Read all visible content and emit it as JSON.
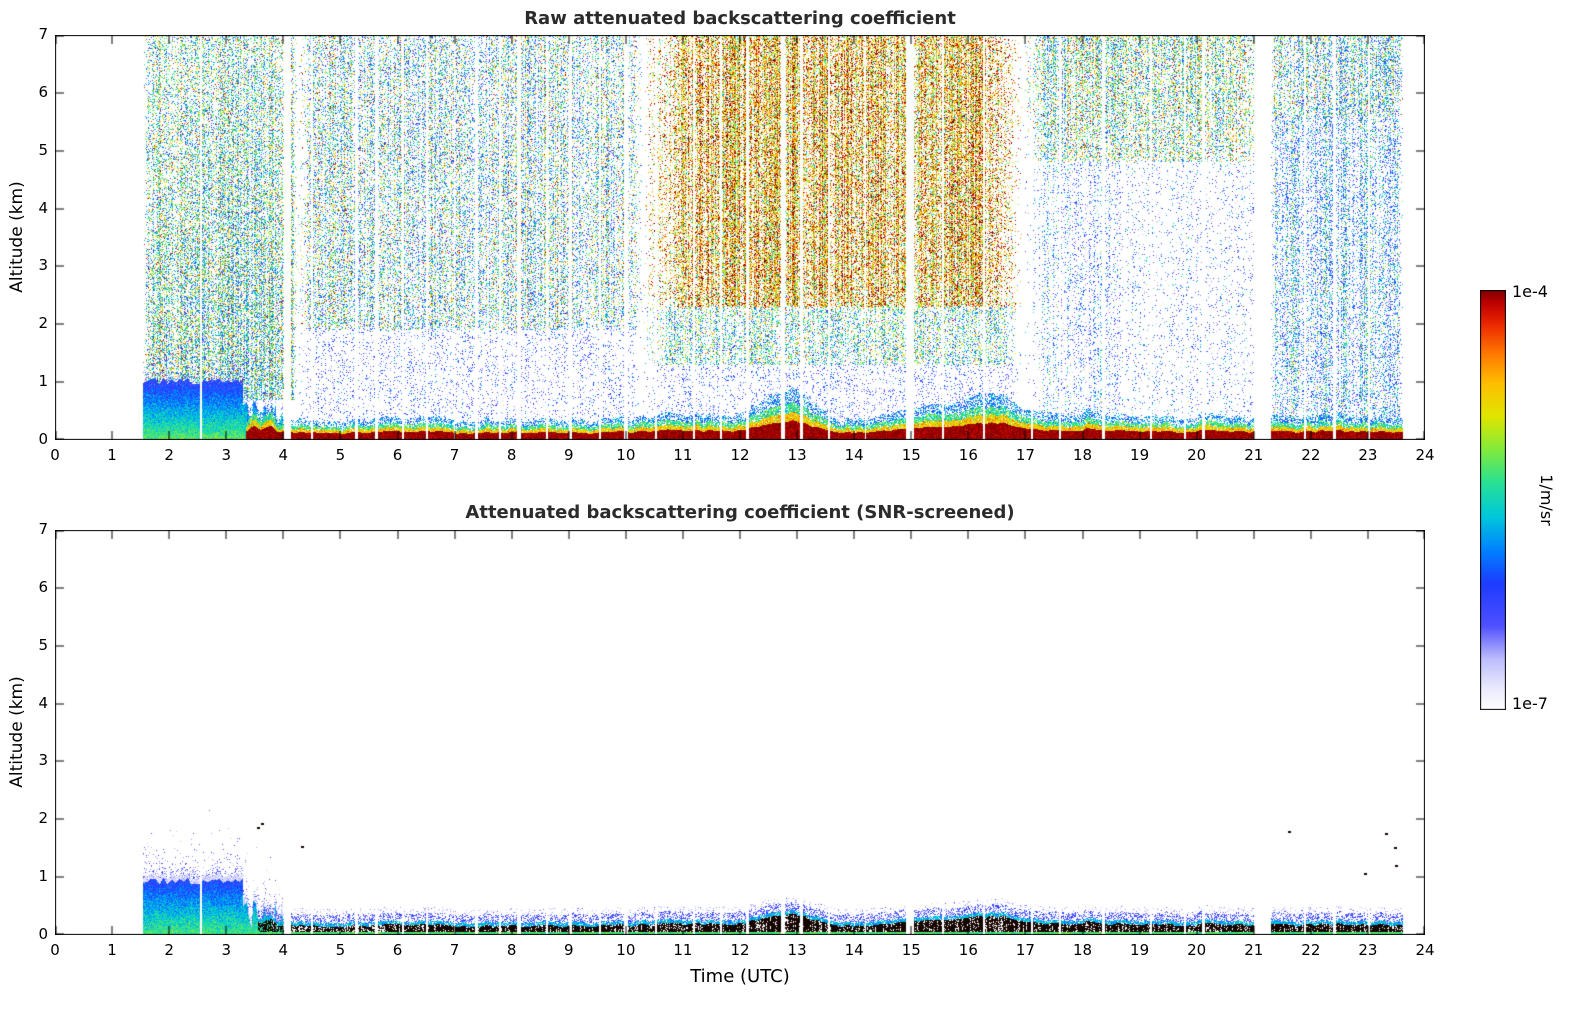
{
  "chart_data": [
    {
      "type": "heatmap",
      "title": "Raw attenuated backscattering coefficient",
      "xlabel": "",
      "ylabel": "Altitude (km)",
      "xlim": [
        0,
        24
      ],
      "ylim": [
        0,
        7
      ],
      "xticks": [
        0,
        1,
        2,
        3,
        4,
        5,
        6,
        7,
        8,
        9,
        10,
        11,
        12,
        13,
        14,
        15,
        16,
        17,
        18,
        19,
        20,
        21,
        22,
        23,
        24
      ],
      "yticks": [
        0,
        1,
        2,
        3,
        4,
        5,
        6,
        7
      ],
      "time_coverage": [
        1.55,
        23.62
      ],
      "value_scale": {
        "type": "log",
        "min": 1e-07,
        "max": 0.0001,
        "units": "1/m/sr"
      },
      "noise_regions": [
        {
          "name": "early-aloft",
          "t": [
            1.55,
            4.25
          ],
          "z": [
            0.7,
            7.0
          ],
          "mean": -5.45,
          "sd": 0.6,
          "density": 0.5,
          "colmod": 0.3,
          "zfade": 0.55,
          "soft": 0.1
        },
        {
          "name": "morning-aloft",
          "t": [
            4.25,
            10.3
          ],
          "z": [
            1.9,
            7.0
          ],
          "mean": -5.75,
          "sd": 0.7,
          "density": 0.34,
          "colmod": 0.6,
          "zfade": 0.9,
          "soft": 0.3
        },
        {
          "name": "morning-low",
          "t": [
            4.25,
            10.3
          ],
          "z": [
            0.3,
            1.9
          ],
          "mean": -6.35,
          "sd": 0.3,
          "density": 0.11,
          "colmod": 0.3,
          "soft": 0.2
        },
        {
          "name": "plume-aloft",
          "t": [
            10.3,
            16.95
          ],
          "z": [
            2.3,
            7.0
          ],
          "mean": -4.62,
          "sd": 0.5,
          "density": 0.52,
          "colmod": 0.25,
          "soft": 0.8
        },
        {
          "name": "plume-mid",
          "t": [
            10.3,
            16.95
          ],
          "z": [
            1.3,
            2.3
          ],
          "mean": -5.5,
          "sd": 0.55,
          "density": 0.3,
          "colmod": 0.25,
          "soft": 0.5
        },
        {
          "name": "plume-low",
          "t": [
            10.3,
            16.95
          ],
          "z": [
            0.3,
            1.3
          ],
          "mean": -6.35,
          "sd": 0.3,
          "density": 0.12,
          "colmod": 0.25,
          "soft": 0.3
        },
        {
          "name": "evening-clear",
          "t": [
            16.95,
            21.3
          ],
          "z": [
            0.3,
            4.8
          ],
          "mean": -6.3,
          "sd": 0.35,
          "density": 0.07,
          "colmod": 0.5,
          "soft": 0.3
        },
        {
          "name": "evening-streaks",
          "t": [
            17.25,
            18.75
          ],
          "z": [
            0.3,
            4.8
          ],
          "mean": -6.25,
          "sd": 0.35,
          "density": 0.17,
          "colmod": 0.7,
          "soft": 0.15
        },
        {
          "name": "evening-high",
          "t": [
            16.95,
            21.3
          ],
          "z": [
            4.8,
            7.0
          ],
          "mean": -5.35,
          "sd": 0.6,
          "density": 0.3,
          "colmod": 0.4,
          "zfade": 1.3,
          "soft": 0.5
        },
        {
          "name": "night-return",
          "t": [
            21.3,
            23.62
          ],
          "z": [
            0.3,
            7.0
          ],
          "mean": -6.05,
          "sd": 0.5,
          "density": 0.33,
          "colmod": 0.55,
          "soft": 0.1
        },
        {
          "name": "night-high",
          "t": [
            21.3,
            23.62
          ],
          "z": [
            5.6,
            7.0
          ],
          "mean": -5.7,
          "sd": 0.65,
          "density": 0.35,
          "colmod": 0.5,
          "soft": 0.1
        }
      ],
      "boundary_layer": {
        "t": [
          1.55,
          4.0
        ],
        "height": 1.02,
        "collapse_start": 3.3,
        "mean_bottom": -5.25,
        "mean_top": -6.2,
        "sd": 0.15,
        "top_speckle_density": 0.3,
        "top_speckle_mean": -6.55
      },
      "surface_layer": {
        "t": [
          3.35,
          23.62
        ],
        "base_height": 0.13,
        "jitter": 0.025,
        "bumps": [
          [
            3.5,
            0.1,
            0.1
          ],
          [
            3.78,
            0.08,
            0.09
          ],
          [
            11.0,
            0.5,
            0.04
          ],
          [
            12.55,
            0.4,
            0.09
          ],
          [
            13.0,
            0.3,
            0.13
          ],
          [
            15.55,
            0.7,
            0.09
          ],
          [
            16.55,
            0.45,
            0.12
          ],
          [
            18.1,
            0.5,
            0.05
          ],
          [
            20.3,
            0.4,
            0.04
          ],
          [
            22.5,
            0.6,
            0.03
          ]
        ],
        "layers": [
          {
            "zf": [
              0,
              1.0
            ],
            "mean": -4.03,
            "sd": 0.07,
            "density": 1.0
          },
          {
            "zf": [
              1.0,
              1.45
            ],
            "mean": -4.75,
            "sd": 0.2,
            "density": 0.95
          },
          {
            "zf": [
              1.45,
              1.95
            ],
            "mean": -5.35,
            "sd": 0.2,
            "density": 0.8
          },
          {
            "zf": [
              1.95,
              2.7
            ],
            "mean": -5.85,
            "sd": 0.25,
            "density": 0.45
          }
        ]
      },
      "gaps": [
        [
          2.56,
          0.04
        ],
        [
          4.08,
          0.12
        ],
        [
          4.5,
          0.04
        ],
        [
          5.28,
          0.06
        ],
        [
          5.63,
          0.05
        ],
        [
          6.1,
          0.04
        ],
        [
          6.52,
          0.03
        ],
        [
          7.0,
          0.03
        ],
        [
          7.38,
          0.06
        ],
        [
          7.8,
          0.03
        ],
        [
          8.13,
          0.07
        ],
        [
          8.62,
          0.03
        ],
        [
          9.03,
          0.05
        ],
        [
          9.55,
          0.03
        ],
        [
          10.0,
          0.08
        ],
        [
          10.53,
          0.04
        ],
        [
          11.2,
          0.04
        ],
        [
          11.67,
          0.03
        ],
        [
          12.13,
          0.06
        ],
        [
          12.76,
          0.07
        ],
        [
          13.08,
          0.05
        ],
        [
          13.56,
          0.03
        ],
        [
          14.2,
          0.03
        ],
        [
          14.98,
          0.14
        ],
        [
          15.56,
          0.04
        ],
        [
          16.27,
          0.04
        ],
        [
          17.12,
          0.03
        ],
        [
          17.6,
          0.03
        ],
        [
          18.37,
          0.05
        ],
        [
          19.2,
          0.03
        ],
        [
          19.8,
          0.03
        ],
        [
          20.12,
          0.04
        ],
        [
          21.15,
          0.3
        ],
        [
          21.9,
          0.03
        ],
        [
          22.42,
          0.05
        ],
        [
          23.02,
          0.04
        ]
      ]
    },
    {
      "type": "heatmap",
      "title": "Attenuated backscattering coefficient (SNR-screened)",
      "xlabel": "Time (UTC)",
      "ylabel": "Altitude (km)",
      "xlim": [
        0,
        24
      ],
      "ylim": [
        0,
        7
      ],
      "xticks": [
        0,
        1,
        2,
        3,
        4,
        5,
        6,
        7,
        8,
        9,
        10,
        11,
        12,
        13,
        14,
        15,
        16,
        17,
        18,
        19,
        20,
        21,
        22,
        23,
        24
      ],
      "yticks": [
        0,
        1,
        2,
        3,
        4,
        5,
        6,
        7
      ],
      "time_coverage": [
        1.55,
        23.62
      ],
      "value_scale": {
        "type": "log",
        "min": 1e-07,
        "max": 0.0001,
        "units": "1/m/sr"
      },
      "boundary_layer": {
        "t": [
          1.55,
          4.0
        ],
        "height": 1.02,
        "collapse_start": 3.3,
        "mean_bottom": -5.3,
        "mean_top": -6.2,
        "sd": 0.15,
        "top_speckle_density": 0.35,
        "top_speckle_mean": -6.5,
        "pale_top": -6.75,
        "high_speckle": {
          "t": [
            2.0,
            3.35
          ],
          "zmax": 1.85,
          "density": 0.05
        }
      },
      "surface_layer": {
        "t": [
          3.55,
          23.62
        ],
        "base_height": 0.16,
        "jitter": 0.03,
        "bumps": [
          [
            3.5,
            0.1,
            0.1
          ],
          [
            3.78,
            0.08,
            0.09
          ],
          [
            11.0,
            0.5,
            0.04
          ],
          [
            12.55,
            0.4,
            0.09
          ],
          [
            13.0,
            0.3,
            0.13
          ],
          [
            15.55,
            0.7,
            0.09
          ],
          [
            16.55,
            0.45,
            0.12
          ],
          [
            18.1,
            0.5,
            0.05
          ],
          [
            20.3,
            0.4,
            0.04
          ],
          [
            22.5,
            0.6,
            0.03
          ]
        ],
        "green_top": 0.06,
        "band_color": [
          22,
          4,
          0
        ],
        "band_density_early": 0.72,
        "band_density": 0.96,
        "fringe": [
          {
            "dz": 0.06,
            "mean": -5.7,
            "density": 0.85
          },
          {
            "dz": 0.2,
            "mean": -6.35,
            "density": 0.4
          },
          {
            "dz": 0.3,
            "mean": -6.7,
            "density": 0.15
          }
        ]
      },
      "specks": [
        [
          23.32,
          1.75,
          -4.7
        ],
        [
          23.5,
          1.2,
          -5.3
        ],
        [
          23.48,
          1.5,
          -5.5
        ],
        [
          22.95,
          1.05,
          -5.6
        ],
        [
          21.62,
          1.78,
          -4.9
        ],
        [
          4.32,
          1.52,
          -5.9
        ],
        [
          3.55,
          1.85,
          -4.0
        ],
        [
          3.62,
          1.92,
          -4.0
        ]
      ]
    }
  ],
  "colorbar": {
    "label": "1/m/sr",
    "top_label": "1e-4",
    "bottom_label": "1e-7",
    "colormap": [
      [
        0.0,
        255,
        255,
        255
      ],
      [
        0.05,
        235,
        235,
        252
      ],
      [
        0.12,
        190,
        190,
        252
      ],
      [
        0.2,
        80,
        80,
        255
      ],
      [
        0.3,
        30,
        60,
        255
      ],
      [
        0.38,
        0,
        130,
        255
      ],
      [
        0.46,
        0,
        200,
        220
      ],
      [
        0.54,
        40,
        225,
        150
      ],
      [
        0.62,
        130,
        235,
        60
      ],
      [
        0.7,
        225,
        230,
        0
      ],
      [
        0.78,
        255,
        190,
        0
      ],
      [
        0.85,
        255,
        120,
        0
      ],
      [
        0.92,
        235,
        40,
        0
      ],
      [
        0.97,
        190,
        0,
        0
      ],
      [
        1.0,
        128,
        0,
        0
      ]
    ]
  }
}
